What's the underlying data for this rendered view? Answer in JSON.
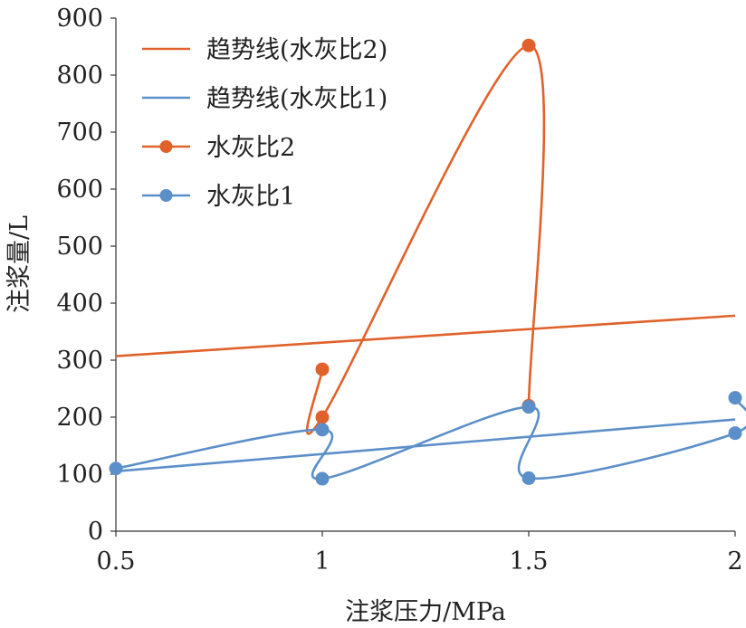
{
  "chart_data": {
    "type": "scatter",
    "title": "",
    "xlabel": "注浆压力/MPa",
    "ylabel": "注浆量/L",
    "xlim": [
      0.5,
      2
    ],
    "ylim": [
      0,
      900
    ],
    "x_ticks": [
      0.5,
      1,
      1.5,
      2
    ],
    "x_tick_labels": [
      "0.5",
      "1",
      "1.5",
      "2"
    ],
    "y_ticks": [
      0,
      100,
      200,
      300,
      400,
      500,
      600,
      700,
      800,
      900
    ],
    "y_tick_labels": [
      "0",
      "100",
      "200",
      "300",
      "400",
      "500",
      "600",
      "700",
      "800",
      "900"
    ],
    "grid": false,
    "legend_position": "top-left",
    "series": [
      {
        "name": "水灰比2",
        "kind": "smooth-line-markers",
        "color": "#E0622A",
        "points": [
          [
            1,
            284
          ],
          [
            1,
            200
          ],
          [
            1.5,
            852
          ],
          [
            1.5,
            220
          ]
        ]
      },
      {
        "name": "水灰比1",
        "kind": "smooth-line-markers",
        "color": "#5B8FC9",
        "points": [
          [
            0.5,
            110
          ],
          [
            1,
            178
          ],
          [
            1,
            92
          ],
          [
            1.5,
            218
          ],
          [
            1.5,
            93
          ],
          [
            2,
            172
          ],
          [
            2,
            234
          ]
        ]
      }
    ],
    "trendlines": [
      {
        "name": "趋势线(水灰比2)",
        "color": "#E0622A",
        "points": [
          [
            0.5,
            307
          ],
          [
            2,
            378
          ]
        ]
      },
      {
        "name": "趋势线(水灰比1)",
        "color": "#5B8FC9",
        "points": [
          [
            0.5,
            105
          ],
          [
            2,
            196
          ]
        ]
      }
    ],
    "legend": [
      {
        "label": "趋势线(水灰比2)",
        "color": "#E0622A",
        "marker": false
      },
      {
        "label": "趋势线(水灰比1)",
        "color": "#5B8FC9",
        "marker": false
      },
      {
        "label": "水灰比2",
        "color": "#E0622A",
        "marker": true
      },
      {
        "label": "水灰比1",
        "color": "#5B8FC9",
        "marker": true
      }
    ]
  }
}
